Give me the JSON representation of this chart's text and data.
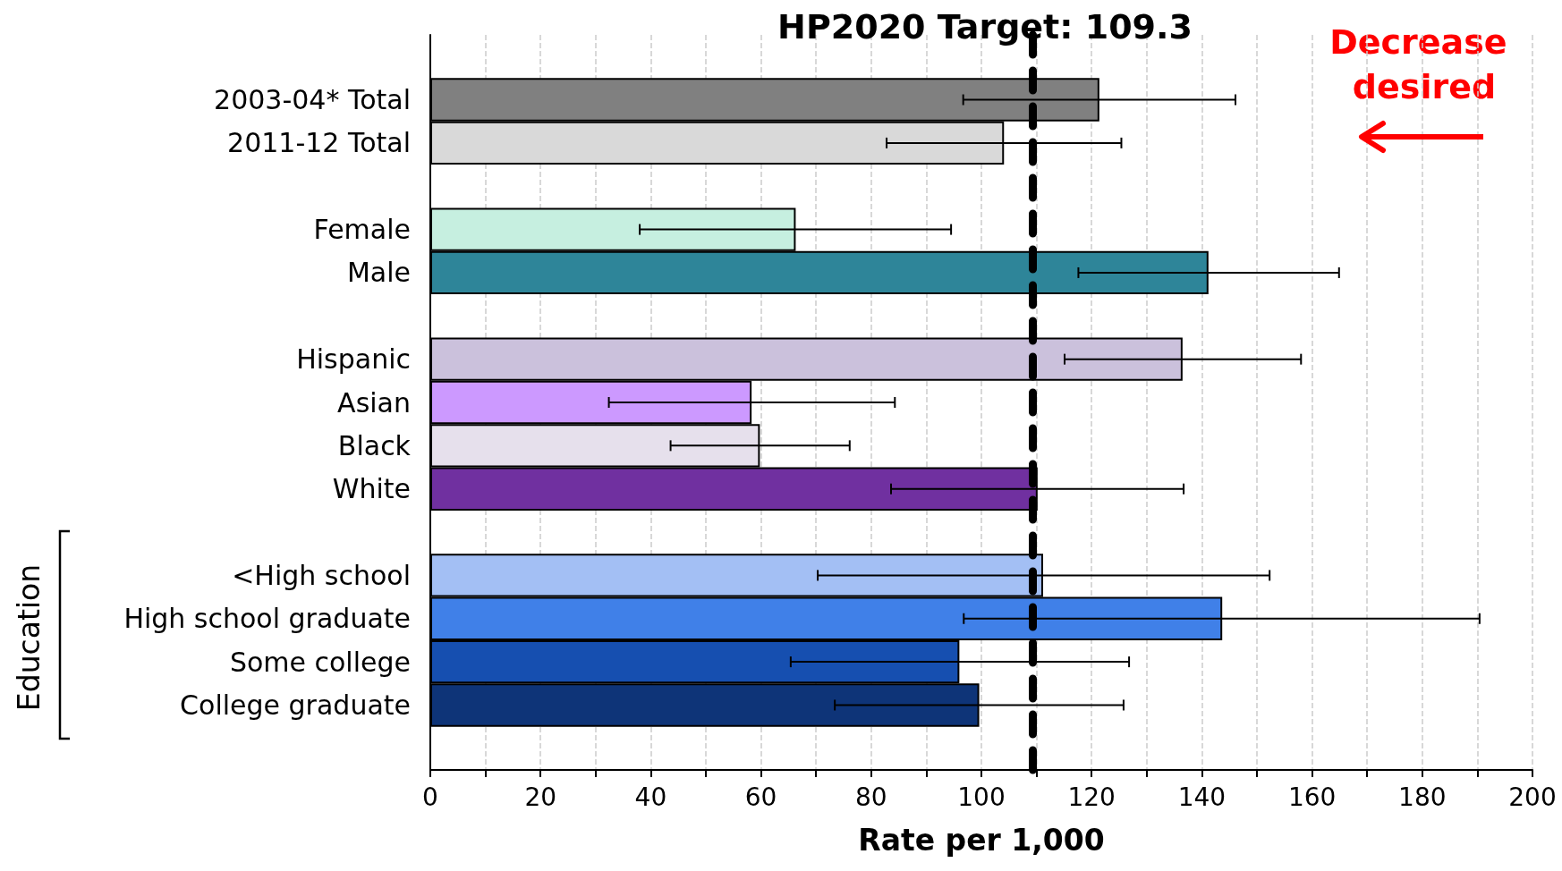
{
  "chart_data": {
    "type": "bar",
    "orientation": "horizontal",
    "title": "HP2020 Target: 109.3",
    "xlabel": "Rate per 1,000",
    "categories": [
      null,
      "2003-04* Total",
      "2011-12 Total",
      null,
      "Female",
      "Male",
      null,
      "Hispanic",
      "Asian",
      "Black",
      "White",
      null,
      "<High school",
      "High school graduate",
      "Some college",
      "College graduate",
      null
    ],
    "values": [
      null,
      121.4,
      104.1,
      null,
      66.3,
      141.2,
      null,
      136.5,
      58.3,
      59.8,
      110.2,
      null,
      111.2,
      143.7,
      96.0,
      99.6,
      null
    ],
    "errors": [
      null,
      [
        96.7,
        146.1
      ],
      [
        82.8,
        125.4
      ],
      null,
      [
        38.0,
        94.5
      ],
      [
        117.6,
        164.9
      ],
      null,
      [
        115.1,
        158.0
      ],
      [
        32.4,
        84.3
      ],
      [
        43.6,
        76.1
      ],
      [
        83.6,
        136.7
      ],
      null,
      [
        70.3,
        152.3
      ],
      [
        96.8,
        190.4
      ],
      [
        65.4,
        126.8
      ],
      [
        73.4,
        125.8
      ],
      null
    ],
    "colors": [
      null,
      "#808080",
      "#d9d9d9",
      null,
      "#c6efe0",
      "#2e8599",
      null,
      "#cbc1dc",
      "#cc99ff",
      "#e6e0ec",
      "#7030a0",
      null,
      "#a3bff4",
      "#4080e8",
      "#164fb0",
      "#0e3478",
      null
    ],
    "xlim": [
      0,
      200
    ],
    "xticks": [
      0,
      {
        "value": 10,
        "label": null
      },
      20,
      {
        "value": 30,
        "label": null
      },
      40,
      {
        "value": 50,
        "label": null
      },
      60,
      {
        "value": 70,
        "label": null
      },
      80,
      {
        "value": 90,
        "label": null
      },
      100,
      {
        "value": 110,
        "label": null
      },
      120,
      {
        "value": 130,
        "label": null
      },
      140,
      {
        "value": 150,
        "label": null
      },
      160,
      {
        "value": 170,
        "label": null
      },
      180,
      {
        "value": 190,
        "label": null
      },
      200
    ],
    "grid": "x",
    "ref_lines": [
      {
        "axis": "x",
        "value": 109.3,
        "color": "#000000",
        "line_style": "dashed"
      }
    ],
    "annotations": [
      "Decrease desired",
      "Education"
    ]
  }
}
